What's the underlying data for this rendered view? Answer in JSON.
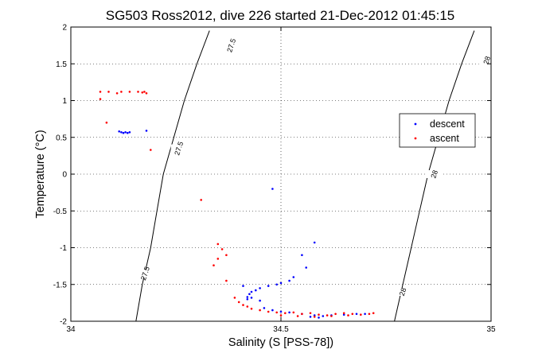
{
  "chart_data": {
    "type": "scatter",
    "title": "SG503 Ross2012, dive 226 started 21-Dec-2012 01:45:15",
    "xlabel": "Salinity (S [PSS-78])",
    "ylabel": "Temperature (°C)",
    "xlim": [
      34,
      35
    ],
    "ylim": [
      -2,
      2
    ],
    "xticks": [
      34,
      34.5,
      35
    ],
    "yticks": [
      -2,
      -1.5,
      -1,
      -0.5,
      0,
      0.5,
      1,
      1.5,
      2
    ],
    "xtick_labels": [
      "34",
      "34.5",
      "35"
    ],
    "ytick_labels": [
      "-2",
      "-1.5",
      "-1",
      "-0.5",
      "0",
      "0.5",
      "1",
      "1.5",
      "2"
    ],
    "grid": true,
    "legend_position": "right",
    "legend": [
      {
        "name": "descent",
        "color": "#0000ff"
      },
      {
        "name": "ascent",
        "color": "#ff0000"
      }
    ],
    "series": [
      {
        "name": "descent",
        "color": "#0000ff",
        "points": [
          [
            34.115,
            0.58
          ],
          [
            34.12,
            0.57
          ],
          [
            34.125,
            0.56
          ],
          [
            34.13,
            0.57
          ],
          [
            34.135,
            0.56
          ],
          [
            34.14,
            0.57
          ],
          [
            34.18,
            0.59
          ],
          [
            34.48,
            -0.2
          ],
          [
            34.58,
            -0.93
          ],
          [
            34.55,
            -1.1
          ],
          [
            34.56,
            -1.27
          ],
          [
            34.53,
            -1.4
          ],
          [
            34.52,
            -1.45
          ],
          [
            34.5,
            -1.48
          ],
          [
            34.49,
            -1.5
          ],
          [
            34.47,
            -1.52
          ],
          [
            34.45,
            -1.55
          ],
          [
            34.44,
            -1.58
          ],
          [
            34.43,
            -1.6
          ],
          [
            34.425,
            -1.63
          ],
          [
            34.42,
            -1.67
          ],
          [
            34.42,
            -1.7
          ],
          [
            34.45,
            -1.72
          ],
          [
            34.43,
            -1.68
          ],
          [
            34.41,
            -1.52
          ],
          [
            34.46,
            -1.82
          ],
          [
            34.48,
            -1.85
          ],
          [
            34.5,
            -1.87
          ],
          [
            34.52,
            -1.88
          ],
          [
            34.55,
            -1.9
          ],
          [
            34.58,
            -1.92
          ],
          [
            34.6,
            -1.93
          ],
          [
            34.62,
            -1.92
          ],
          [
            34.65,
            -1.91
          ],
          [
            34.68,
            -1.9
          ],
          [
            34.7,
            -1.9
          ],
          [
            34.57,
            -1.94
          ],
          [
            34.59,
            -1.95
          ]
        ]
      },
      {
        "name": "ascent",
        "color": "#ff0000",
        "points": [
          [
            34.07,
            1.12
          ],
          [
            34.07,
            1.02
          ],
          [
            34.09,
            1.12
          ],
          [
            34.11,
            1.1
          ],
          [
            34.12,
            1.12
          ],
          [
            34.14,
            1.12
          ],
          [
            34.16,
            1.12
          ],
          [
            34.17,
            1.11
          ],
          [
            34.175,
            1.12
          ],
          [
            34.18,
            1.1
          ],
          [
            34.085,
            0.7
          ],
          [
            34.19,
            0.33
          ],
          [
            34.31,
            -0.35
          ],
          [
            34.35,
            -0.95
          ],
          [
            34.36,
            -1.02
          ],
          [
            34.37,
            -1.1
          ],
          [
            34.35,
            -1.15
          ],
          [
            34.34,
            -1.24
          ],
          [
            34.37,
            -1.45
          ],
          [
            34.39,
            -1.68
          ],
          [
            34.4,
            -1.74
          ],
          [
            34.41,
            -1.78
          ],
          [
            34.42,
            -1.8
          ],
          [
            34.43,
            -1.83
          ],
          [
            34.45,
            -1.85
          ],
          [
            34.47,
            -1.87
          ],
          [
            34.49,
            -1.88
          ],
          [
            34.51,
            -1.89
          ],
          [
            34.53,
            -1.88
          ],
          [
            34.55,
            -1.9
          ],
          [
            34.57,
            -1.89
          ],
          [
            34.59,
            -1.91
          ],
          [
            34.61,
            -1.92
          ],
          [
            34.63,
            -1.9
          ],
          [
            34.65,
            -1.89
          ],
          [
            34.67,
            -1.9
          ],
          [
            34.69,
            -1.91
          ],
          [
            34.71,
            -1.9
          ],
          [
            34.72,
            -1.89
          ],
          [
            34.5,
            -1.92
          ],
          [
            34.54,
            -1.93
          ],
          [
            34.58,
            -1.94
          ],
          [
            34.62,
            -1.93
          ],
          [
            34.66,
            -1.92
          ]
        ]
      }
    ],
    "contours": [
      {
        "label": "27.5",
        "points": [
          [
            34.155,
            -2.0
          ],
          [
            34.17,
            -1.5
          ],
          [
            34.19,
            -1.0
          ],
          [
            34.205,
            -0.5
          ],
          [
            34.22,
            0.0
          ],
          [
            34.245,
            0.5
          ],
          [
            34.27,
            1.0
          ],
          [
            34.3,
            1.5
          ],
          [
            34.33,
            1.95
          ]
        ],
        "labels_at": [
          [
            34.177,
            -1.35
          ],
          [
            34.257,
            0.35
          ],
          [
            34.382,
            1.75
          ]
        ]
      },
      {
        "label": "28",
        "points": [
          [
            34.77,
            -2.0
          ],
          [
            34.79,
            -1.5
          ],
          [
            34.81,
            -1.0
          ],
          [
            34.83,
            -0.5
          ],
          [
            34.85,
            0.0
          ],
          [
            34.875,
            0.5
          ],
          [
            34.9,
            1.0
          ],
          [
            34.93,
            1.5
          ],
          [
            34.96,
            1.95
          ]
        ],
        "labels_at": [
          [
            34.79,
            -1.6
          ],
          [
            34.865,
            0.0
          ],
          [
            34.99,
            1.55
          ]
        ]
      }
    ]
  }
}
